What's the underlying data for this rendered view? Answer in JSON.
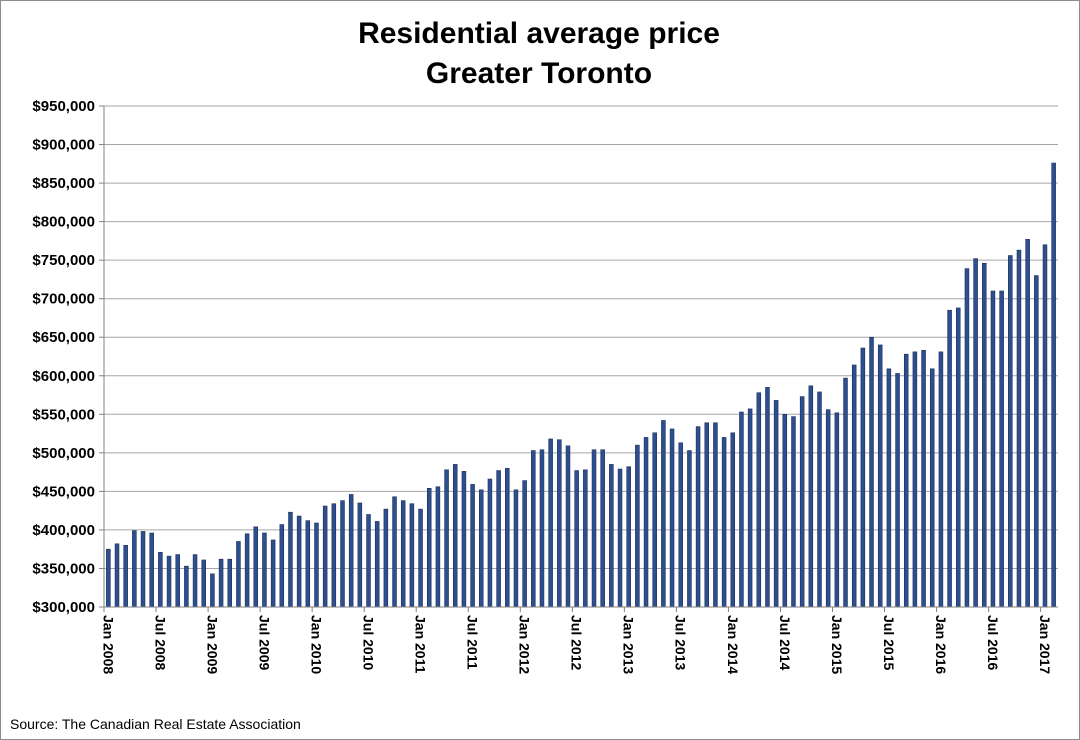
{
  "chart_data": {
    "type": "bar",
    "title": "Residential average price",
    "subtitle": "Greater Toronto",
    "xlabel": "",
    "ylabel": "",
    "ylim": [
      300000,
      950000
    ],
    "y_ticks": [
      "$300,000",
      "$350,000",
      "$400,000",
      "$450,000",
      "$500,000",
      "$550,000",
      "$600,000",
      "$650,000",
      "$700,000",
      "$750,000",
      "$800,000",
      "$850,000",
      "$900,000",
      "$950,000"
    ],
    "x_tick_labels": [
      "Jan 2008",
      "Jul 2008",
      "Jan 2009",
      "Jul 2009",
      "Jan 2010",
      "Jul 2010",
      "Jan 2011",
      "Jul 2011",
      "Jan 2012",
      "Jul 2012",
      "Jan 2013",
      "Jul 2013",
      "Jan 2014",
      "Jul 2014",
      "Jan 2015",
      "Jul 2015",
      "Jan 2016",
      "Jul 2016",
      "Jan 2017"
    ],
    "grid": true,
    "legend": "none",
    "bar_color": "#2e4f8f",
    "bar_edge_color": "#1a2f5a",
    "start_month": "Jan 2008",
    "values": [
      375000,
      382000,
      380000,
      399000,
      398000,
      396000,
      371000,
      366000,
      368000,
      353000,
      368000,
      361000,
      343000,
      362000,
      362000,
      385000,
      395000,
      404000,
      396000,
      387000,
      407000,
      423000,
      418000,
      412000,
      409000,
      431000,
      434000,
      438000,
      446000,
      435000,
      420000,
      411000,
      427000,
      443000,
      438000,
      434000,
      427000,
      454000,
      456000,
      478000,
      485000,
      476000,
      459000,
      452000,
      466000,
      477000,
      480000,
      452000,
      464000,
      503000,
      504000,
      518000,
      517000,
      509000,
      477000,
      478000,
      504000,
      504000,
      485000,
      479000,
      482000,
      510000,
      520000,
      526000,
      542000,
      531000,
      513000,
      503000,
      534000,
      539000,
      539000,
      520000,
      526000,
      553000,
      557000,
      578000,
      585000,
      568000,
      550000,
      547000,
      573000,
      587000,
      579000,
      556000,
      552000,
      597000,
      614000,
      636000,
      650000,
      640000,
      609000,
      603000,
      628000,
      631000,
      633000,
      609000,
      631000,
      685000,
      688000,
      739000,
      752000,
      746000,
      710000,
      710000,
      756000,
      763000,
      777000,
      730000,
      770000,
      876000
    ]
  },
  "source_text": "Source: The Canadian Real Estate Association"
}
